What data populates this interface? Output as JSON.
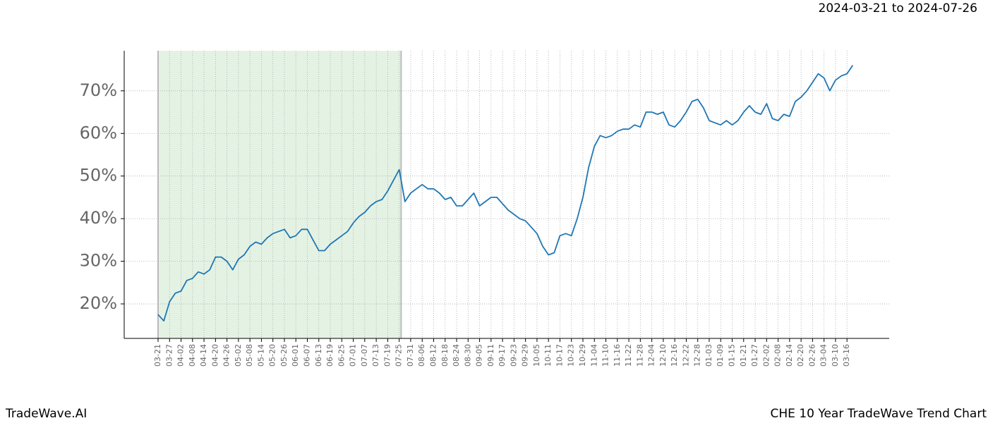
{
  "chart_data": {
    "type": "line",
    "date_range": "2024-03-21 to 2024-07-26",
    "brand": "TradeWave.AI",
    "title": "CHE 10 Year TradeWave Trend Chart",
    "categories": [
      "03-21",
      null,
      "03-27",
      null,
      "04-02",
      null,
      "04-08",
      null,
      "04-14",
      null,
      "04-20",
      null,
      "04-26",
      null,
      "05-02",
      null,
      "05-08",
      null,
      "05-14",
      null,
      "05-20",
      null,
      "05-26",
      null,
      "06-01",
      null,
      "06-07",
      null,
      "06-13",
      null,
      "06-19",
      null,
      "06-25",
      null,
      "07-01",
      null,
      "07-07",
      null,
      "07-13",
      null,
      "07-19",
      null,
      "07-25",
      null,
      "07-31",
      null,
      "08-06",
      null,
      "08-12",
      null,
      "08-18",
      null,
      "08-24",
      null,
      "08-30",
      null,
      "09-05",
      null,
      "09-11",
      null,
      "09-17",
      null,
      "09-23",
      null,
      "09-29",
      null,
      "10-05",
      null,
      "10-11",
      null,
      "10-17",
      null,
      "10-23",
      null,
      "10-29",
      null,
      "11-04",
      null,
      "11-10",
      null,
      "11-16",
      null,
      "11-22",
      null,
      "11-28",
      null,
      "12-04",
      null,
      "12-10",
      null,
      "12-16",
      null,
      "12-22",
      null,
      "12-28",
      null,
      "01-03",
      null,
      "01-09",
      null,
      "01-15",
      null,
      "01-21",
      null,
      "01-27",
      null,
      "02-02",
      null,
      "02-08",
      null,
      "02-14",
      null,
      "02-20",
      null,
      "02-26",
      null,
      "03-04",
      null,
      "03-10",
      null,
      "03-16",
      null
    ],
    "series": [
      {
        "name": "CHE",
        "color": "#1f77b4",
        "values": [
          17.5,
          16,
          20.5,
          22.5,
          23,
          25.5,
          26,
          27.5,
          27,
          28,
          31,
          31,
          30,
          28,
          30.5,
          31.5,
          33.5,
          34.5,
          34,
          35.5,
          36.5,
          37,
          37.5,
          35.5,
          36,
          37.5,
          37.5,
          35,
          32.5,
          32.5,
          34,
          35,
          36,
          37,
          39,
          40.5,
          41.5,
          43,
          44,
          44.5,
          46.5,
          49,
          51.5,
          44,
          46,
          47,
          48,
          47,
          47,
          46,
          44.5,
          45,
          43,
          43,
          44.5,
          46,
          43,
          44,
          45,
          45,
          43.5,
          42,
          41,
          40,
          39.5,
          38,
          36.5,
          33.5,
          31.5,
          32,
          36,
          36.5,
          36,
          40,
          45,
          52,
          57,
          59.5,
          59,
          59.5,
          60.5,
          61,
          61,
          62,
          61.5,
          65,
          65,
          64.5,
          65,
          62,
          61.5,
          63,
          65,
          67.5,
          68,
          66,
          63,
          62.5,
          62,
          63,
          62,
          63,
          65,
          66.5,
          65,
          64.5,
          67,
          63.5,
          63,
          64.5,
          64,
          67.5,
          68.5,
          70,
          72,
          74,
          73,
          70,
          72.5,
          73.5,
          74,
          76
        ]
      }
    ],
    "shade": {
      "from": "03-21",
      "to": "07-25",
      "color": "#d9ecd9"
    },
    "ylim": [
      11.9,
      79.4
    ],
    "yticks": [
      {
        "value": 20,
        "label": "20%"
      },
      {
        "value": 30,
        "label": "30%"
      },
      {
        "value": 40,
        "label": "40%"
      },
      {
        "value": 50,
        "label": "50%"
      },
      {
        "value": 60,
        "label": "60%"
      },
      {
        "value": 70,
        "label": "70%"
      }
    ],
    "grid": true
  }
}
